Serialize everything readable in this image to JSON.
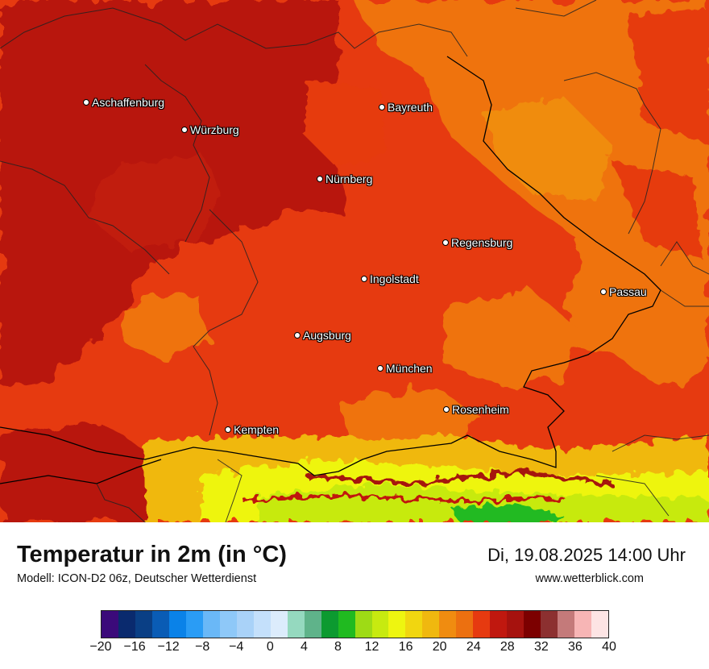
{
  "map": {
    "cities": [
      {
        "name": "Aschaffenburg",
        "id": "aschaffenburg"
      },
      {
        "name": "Bayreuth",
        "id": "bayreuth"
      },
      {
        "name": "Würzburg",
        "id": "wuerzburg"
      },
      {
        "name": "Nürnberg",
        "id": "nuernberg"
      },
      {
        "name": "Regensburg",
        "id": "regensburg"
      },
      {
        "name": "Ingolstadt",
        "id": "ingolstadt"
      },
      {
        "name": "Passau",
        "id": "passau"
      },
      {
        "name": "Augsburg",
        "id": "augsburg"
      },
      {
        "name": "München",
        "id": "muenchen"
      },
      {
        "name": "Rosenheim",
        "id": "rosenheim"
      },
      {
        "name": "Kempten",
        "id": "kempten"
      }
    ]
  },
  "footer": {
    "title": "Temperatur in 2m (in °C)",
    "subtitle": "Modell: ICON-D2 06z, Deutscher Wetterdienst",
    "datetime": "Di, 19.08.2025 14:00 Uhr",
    "website": "www.wetterblick.com"
  },
  "legend": {
    "colors": [
      "#3b0a7a",
      "#0a2a6e",
      "#0a3f85",
      "#0a5cb5",
      "#0a82e8",
      "#2a9cf5",
      "#6ab8f7",
      "#8ec8f8",
      "#a9d2f8",
      "#c4e0fb",
      "#dcecfc",
      "#95d9bf",
      "#5fb38a",
      "#0c9a30",
      "#20ba20",
      "#9edb15",
      "#c7ea10",
      "#eef510",
      "#f1d610",
      "#f0b80f",
      "#f08c10",
      "#ec7010",
      "#e63a10",
      "#c0180f",
      "#a6120e",
      "#7c0000",
      "#8c3030",
      "#c47a7a",
      "#f7b5b5",
      "#fde4e4"
    ],
    "ticks": [
      "−20",
      "−16",
      "−12",
      "−8",
      "−4",
      "0",
      "4",
      "8",
      "12",
      "16",
      "20",
      "24",
      "28",
      "32",
      "36",
      "40"
    ]
  }
}
